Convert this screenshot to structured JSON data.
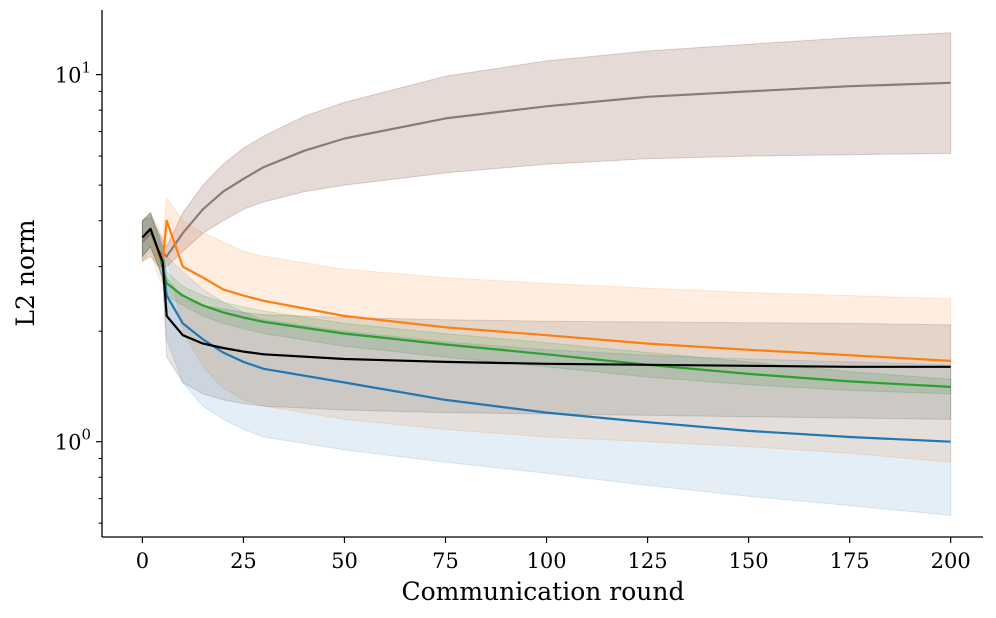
{
  "chart_data": {
    "type": "line",
    "title": "",
    "xlabel": "Communication round",
    "ylabel": "L2 norm",
    "xlim": [
      -10,
      208
    ],
    "ylim": [
      0.55,
      15
    ],
    "yscale": "log",
    "grid": false,
    "legend": "none",
    "xticks": [
      {
        "value": 0,
        "label": "0"
      },
      {
        "value": 25,
        "label": "25"
      },
      {
        "value": 50,
        "label": "50"
      },
      {
        "value": 75,
        "label": "75"
      },
      {
        "value": 100,
        "label": "100"
      },
      {
        "value": 125,
        "label": "125"
      },
      {
        "value": 150,
        "label": "150"
      },
      {
        "value": 175,
        "label": "175"
      },
      {
        "value": 200,
        "label": "200"
      }
    ],
    "yticks": [
      {
        "value": 1,
        "base": "10",
        "exp": "0"
      },
      {
        "value": 10,
        "base": "10",
        "exp": "1"
      }
    ],
    "series": [
      {
        "name": "brown",
        "color": "#8c564b",
        "line_color": "#8a7b78",
        "band_opacity": 0.22,
        "x": [
          0,
          2,
          4,
          6,
          10,
          15,
          20,
          25,
          30,
          40,
          50,
          75,
          100,
          125,
          150,
          175,
          200
        ],
        "y": [
          3.5,
          3.7,
          3.3,
          3.2,
          3.7,
          4.3,
          4.8,
          5.2,
          5.6,
          6.2,
          6.7,
          7.6,
          8.2,
          8.7,
          9.0,
          9.3,
          9.5
        ],
        "lower": [
          3.1,
          3.2,
          3.0,
          3.0,
          3.3,
          3.7,
          4.0,
          4.3,
          4.5,
          4.8,
          5.0,
          5.4,
          5.7,
          5.9,
          6.0,
          6.05,
          6.1
        ],
        "upper": [
          4.0,
          4.1,
          3.7,
          3.4,
          4.2,
          5.0,
          5.7,
          6.3,
          6.8,
          7.7,
          8.4,
          9.9,
          10.9,
          11.6,
          12.1,
          12.6,
          13.0
        ]
      },
      {
        "name": "orange",
        "color": "#ff7f0e",
        "line_color": "#ff7f0e",
        "band_opacity": 0.13,
        "x": [
          0,
          2,
          4,
          5,
          6,
          10,
          15,
          20,
          25,
          30,
          50,
          75,
          100,
          125,
          150,
          175,
          200
        ],
        "y": [
          3.6,
          3.8,
          3.2,
          3.1,
          4.0,
          3.0,
          2.8,
          2.6,
          2.5,
          2.42,
          2.2,
          2.05,
          1.95,
          1.85,
          1.78,
          1.72,
          1.66
        ],
        "lower": [
          3.1,
          3.3,
          2.8,
          2.7,
          3.2,
          2.0,
          1.6,
          1.4,
          1.3,
          1.25,
          1.15,
          1.08,
          1.03,
          1.0,
          0.97,
          0.93,
          0.88
        ],
        "upper": [
          4.0,
          4.2,
          3.8,
          3.6,
          4.6,
          4.0,
          3.7,
          3.5,
          3.3,
          3.2,
          2.95,
          2.8,
          2.7,
          2.62,
          2.55,
          2.5,
          2.45
        ]
      },
      {
        "name": "green",
        "color": "#2ca02c",
        "line_color": "#2ca02c",
        "band_opacity": 0.15,
        "x": [
          0,
          2,
          4,
          6,
          10,
          15,
          20,
          25,
          30,
          50,
          75,
          100,
          125,
          150,
          175,
          200
        ],
        "y": [
          3.6,
          3.8,
          3.3,
          2.7,
          2.5,
          2.35,
          2.25,
          2.18,
          2.12,
          1.97,
          1.84,
          1.73,
          1.62,
          1.53,
          1.46,
          1.41
        ],
        "lower": [
          3.2,
          3.4,
          3.0,
          2.5,
          2.35,
          2.2,
          2.1,
          2.03,
          1.97,
          1.82,
          1.7,
          1.6,
          1.5,
          1.43,
          1.38,
          1.35
        ],
        "upper": [
          4.0,
          4.2,
          3.6,
          2.9,
          2.65,
          2.5,
          2.4,
          2.33,
          2.27,
          2.1,
          1.97,
          1.86,
          1.75,
          1.65,
          1.55,
          1.48
        ]
      },
      {
        "name": "blue",
        "color": "#1f77b4",
        "line_color": "#1f77b4",
        "band_opacity": 0.12,
        "x": [
          0,
          2,
          4,
          5,
          6,
          10,
          15,
          20,
          25,
          30,
          50,
          75,
          100,
          125,
          150,
          175,
          200
        ],
        "y": [
          3.6,
          3.8,
          3.3,
          3.1,
          2.5,
          2.1,
          1.9,
          1.75,
          1.65,
          1.58,
          1.45,
          1.3,
          1.2,
          1.13,
          1.07,
          1.03,
          1.0
        ],
        "lower": [
          3.2,
          3.4,
          3.0,
          2.8,
          1.9,
          1.45,
          1.25,
          1.15,
          1.08,
          1.03,
          0.95,
          0.88,
          0.82,
          0.76,
          0.71,
          0.67,
          0.63
        ],
        "upper": [
          4.0,
          4.2,
          3.6,
          3.4,
          3.2,
          2.9,
          2.6,
          2.4,
          2.25,
          2.15,
          2.0,
          1.87,
          1.78,
          1.72,
          1.68,
          1.65,
          1.62
        ]
      },
      {
        "name": "black",
        "color": "#000000",
        "line_color": "#000000",
        "band_opacity": 0.1,
        "x": [
          0,
          2,
          4,
          5,
          6,
          10,
          15,
          20,
          25,
          30,
          50,
          75,
          100,
          125,
          150,
          175,
          200
        ],
        "y": [
          3.6,
          3.8,
          3.3,
          3.1,
          2.2,
          1.95,
          1.85,
          1.8,
          1.76,
          1.73,
          1.68,
          1.65,
          1.63,
          1.62,
          1.61,
          1.6,
          1.6
        ],
        "lower": [
          3.2,
          3.4,
          3.0,
          2.8,
          1.7,
          1.45,
          1.35,
          1.3,
          1.27,
          1.25,
          1.22,
          1.2,
          1.19,
          1.18,
          1.17,
          1.16,
          1.15
        ],
        "upper": [
          4.0,
          4.2,
          3.7,
          3.4,
          2.8,
          2.45,
          2.35,
          2.3,
          2.25,
          2.22,
          2.18,
          2.15,
          2.13,
          2.12,
          2.11,
          2.1,
          2.08
        ]
      }
    ]
  }
}
